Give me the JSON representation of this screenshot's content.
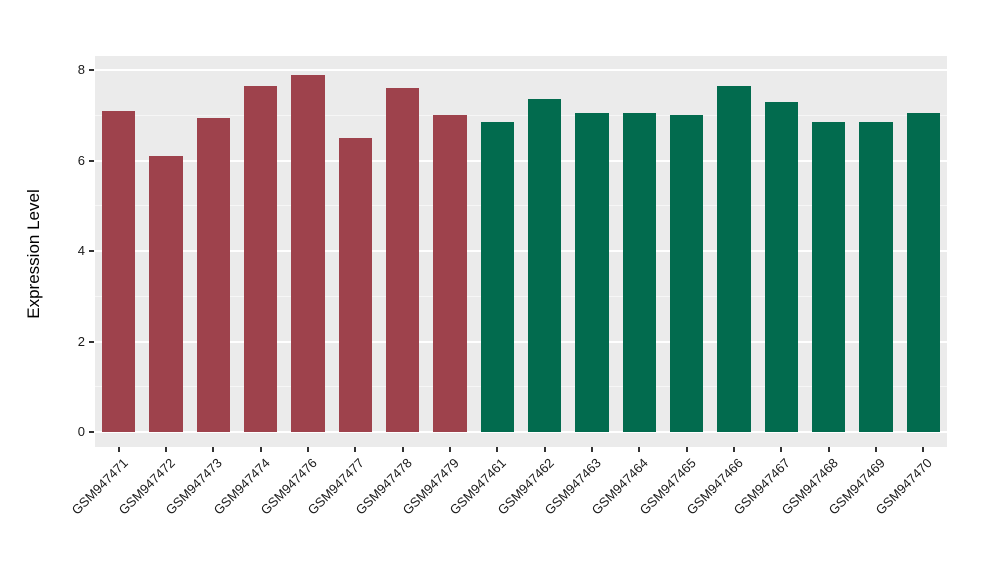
{
  "chart_data": {
    "type": "bar",
    "title": "",
    "xlabel": "",
    "ylabel": "Expression Level",
    "ylim": [
      0,
      8
    ],
    "yticks_major": [
      0,
      2,
      4,
      6,
      8
    ],
    "yticks_minor": [
      1,
      3,
      5,
      7
    ],
    "grid": "on",
    "legend": "none",
    "categories": [
      "GSM947471",
      "GSM947472",
      "GSM947473",
      "GSM947474",
      "GSM947476",
      "GSM947477",
      "GSM947478",
      "GSM947479",
      "GSM947461",
      "GSM947462",
      "GSM947463",
      "GSM947464",
      "GSM947465",
      "GSM947466",
      "GSM947467",
      "GSM947468",
      "GSM947469",
      "GSM947470"
    ],
    "values": [
      7.1,
      6.1,
      6.95,
      7.65,
      7.9,
      6.5,
      7.6,
      7.0,
      6.85,
      7.35,
      7.05,
      7.05,
      7.0,
      7.65,
      7.3,
      6.85,
      6.85,
      7.05
    ],
    "groups": [
      "red",
      "red",
      "red",
      "red",
      "red",
      "red",
      "red",
      "red",
      "green",
      "green",
      "green",
      "green",
      "green",
      "green",
      "green",
      "green",
      "green",
      "green"
    ],
    "group_colors": {
      "red": "#9E424C",
      "green": "#026B4E"
    },
    "panel_background": "#EBEBEB",
    "grid_color": "#FFFFFF",
    "tick_color": "#333333"
  }
}
